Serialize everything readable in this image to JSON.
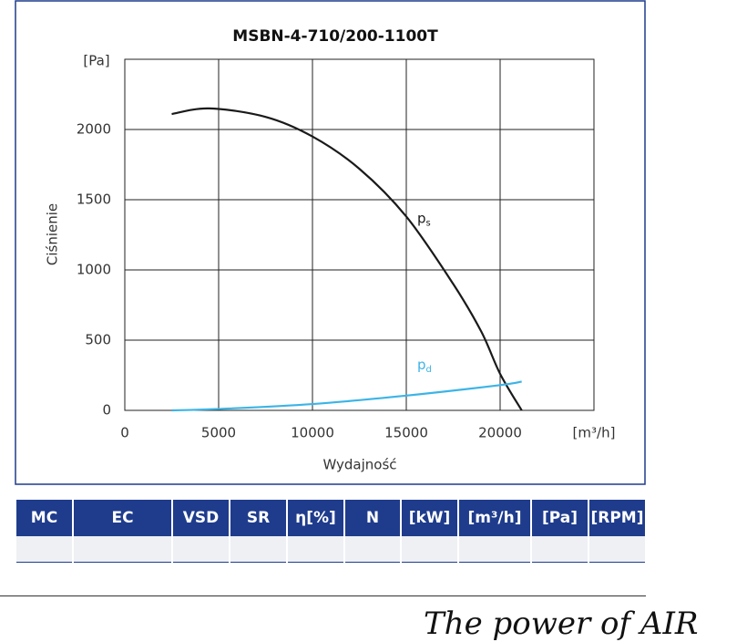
{
  "chart_data": {
    "type": "line",
    "title": "MSBN-4-710/200-1100T",
    "y_label": "Ciśnienie",
    "y_unit": "[Pa]",
    "x_label": "Wydajność",
    "x_unit": "[m³/h]",
    "xlim": [
      0,
      25000
    ],
    "xticks": [
      0,
      5000,
      10000,
      15000,
      20000
    ],
    "ylim": [
      0,
      2500
    ],
    "yticks": [
      0,
      500,
      1000,
      1500,
      2000
    ],
    "grid": true,
    "series": [
      {
        "name": "ps",
        "color": "#1a1a1a",
        "x": [
          2500,
          4500,
          7500,
          10000,
          12500,
          15000,
          17500,
          19000,
          20000,
          21150
        ],
        "values": [
          2110,
          2150,
          2090,
          1950,
          1720,
          1380,
          900,
          560,
          260,
          0
        ]
      },
      {
        "name": "pd",
        "color": "#3cb4e6",
        "x": [
          2500,
          5000,
          10000,
          15000,
          20000,
          21150
        ],
        "values": [
          0,
          10,
          45,
          105,
          180,
          205
        ]
      }
    ]
  },
  "table": {
    "headers": [
      "MC",
      "EC",
      "VSD",
      "SR",
      "η[%]",
      "N",
      "[kW]",
      "[m³/h]",
      "[Pa]",
      "[RPM]"
    ]
  },
  "footer": {
    "tagline": "The power of AIR"
  }
}
